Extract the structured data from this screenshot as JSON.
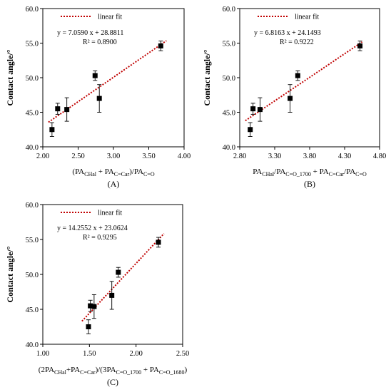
{
  "chart_data": [
    {
      "type": "scatter",
      "panel_label": "(A)",
      "ylabel": "Contact angle/°",
      "xlabel_parts": [
        {
          "t": "(PA",
          "sub": false
        },
        {
          "t": "CHal",
          "sub": true
        },
        {
          "t": " + PA",
          "sub": false
        },
        {
          "t": "C=Car",
          "sub": true
        },
        {
          "t": ")/PA",
          "sub": false
        },
        {
          "t": "C=O",
          "sub": true
        }
      ],
      "xlim": [
        2.0,
        4.0
      ],
      "ylim": [
        40.0,
        60.0
      ],
      "xticks": [
        "2.00",
        "2.50",
        "3.00",
        "3.50",
        "4.00"
      ],
      "xtick_values": [
        2.0,
        2.5,
        3.0,
        3.5,
        4.0
      ],
      "yticks": [
        "40.0",
        "45.0",
        "50.0",
        "55.0",
        "60.0"
      ],
      "ytick_values": [
        40.0,
        45.0,
        50.0,
        55.0,
        60.0
      ],
      "legend": "linear fit",
      "equation": "y = 7.0590 x + 28.8811",
      "r_squared": "R² = 0.8900",
      "fit": {
        "slope": 7.059,
        "intercept": 28.8811,
        "x_range": [
          2.08,
          3.75
        ]
      },
      "points": [
        {
          "x": 2.13,
          "y": 42.5,
          "err": 1.0
        },
        {
          "x": 2.21,
          "y": 45.5,
          "err": 0.8
        },
        {
          "x": 2.34,
          "y": 45.4,
          "err": 1.7
        },
        {
          "x": 2.74,
          "y": 50.3,
          "err": 0.7
        },
        {
          "x": 2.8,
          "y": 47.0,
          "err": 2.0
        },
        {
          "x": 3.67,
          "y": 54.6,
          "err": 0.7
        }
      ]
    },
    {
      "type": "scatter",
      "panel_label": "(B)",
      "ylabel": "Contact angle/°",
      "xlabel_parts": [
        {
          "t": "PA",
          "sub": false
        },
        {
          "t": "CHal",
          "sub": true
        },
        {
          "t": "/PA",
          "sub": false
        },
        {
          "t": "C=O_1700",
          "sub": true
        },
        {
          "t": " + PA",
          "sub": false
        },
        {
          "t": "C=Car",
          "sub": true
        },
        {
          "t": "/PA",
          "sub": false
        },
        {
          "t": "C=O",
          "sub": true
        }
      ],
      "xlim": [
        2.8,
        4.8
      ],
      "ylim": [
        40.0,
        60.0
      ],
      "xticks": [
        "2.80",
        "3.30",
        "3.80",
        "4.30",
        "4.80"
      ],
      "xtick_values": [
        2.8,
        3.3,
        3.8,
        4.3,
        4.8
      ],
      "yticks": [
        "40.0",
        "45.0",
        "50.0",
        "55.0",
        "60.0"
      ],
      "ytick_values": [
        40.0,
        45.0,
        50.0,
        55.0,
        60.0
      ],
      "legend": "linear fit",
      "equation": "y = 6.8163 x + 24.1493",
      "r_squared": "R² = 0.9222",
      "fit": {
        "slope": 6.8163,
        "intercept": 24.1493,
        "x_range": [
          2.88,
          4.55
        ]
      },
      "points": [
        {
          "x": 2.95,
          "y": 42.5,
          "err": 1.0
        },
        {
          "x": 2.99,
          "y": 45.5,
          "err": 0.8
        },
        {
          "x": 3.09,
          "y": 45.4,
          "err": 1.7
        },
        {
          "x": 3.52,
          "y": 47.0,
          "err": 2.0
        },
        {
          "x": 3.63,
          "y": 50.3,
          "err": 0.7
        },
        {
          "x": 4.52,
          "y": 54.6,
          "err": 0.7
        }
      ]
    },
    {
      "type": "scatter",
      "panel_label": "(C)",
      "ylabel": "Contact angle/°",
      "xlabel_parts": [
        {
          "t": "(2PA",
          "sub": false
        },
        {
          "t": "CHal",
          "sub": true
        },
        {
          "t": "+PA",
          "sub": false
        },
        {
          "t": "C=Car",
          "sub": true
        },
        {
          "t": ")/(3PA",
          "sub": false
        },
        {
          "t": "C=O_1700",
          "sub": true
        },
        {
          "t": " + PA",
          "sub": false
        },
        {
          "t": "C=O_1680",
          "sub": true
        },
        {
          "t": ")",
          "sub": false
        }
      ],
      "xlim": [
        1.0,
        2.5
      ],
      "ylim": [
        40.0,
        60.0
      ],
      "xticks": [
        "1.00",
        "1.50",
        "2.00",
        "2.50"
      ],
      "xtick_values": [
        1.0,
        1.5,
        2.0,
        2.5
      ],
      "yticks": [
        "40.0",
        "45.0",
        "50.0",
        "55.0",
        "60.0"
      ],
      "ytick_values": [
        40.0,
        45.0,
        50.0,
        55.0,
        60.0
      ],
      "legend": "linear fit",
      "equation": "y = 14.2552 x + 23.0624",
      "r_squared": "R² = 0.9295",
      "fit": {
        "slope": 14.2552,
        "intercept": 23.0624,
        "x_range": [
          1.42,
          2.3
        ]
      },
      "points": [
        {
          "x": 1.49,
          "y": 42.5,
          "err": 1.0
        },
        {
          "x": 1.51,
          "y": 45.5,
          "err": 0.8
        },
        {
          "x": 1.55,
          "y": 45.4,
          "err": 1.7
        },
        {
          "x": 1.74,
          "y": 47.0,
          "err": 2.0
        },
        {
          "x": 1.81,
          "y": 50.3,
          "err": 0.7
        },
        {
          "x": 2.24,
          "y": 54.6,
          "err": 0.7
        }
      ]
    }
  ]
}
